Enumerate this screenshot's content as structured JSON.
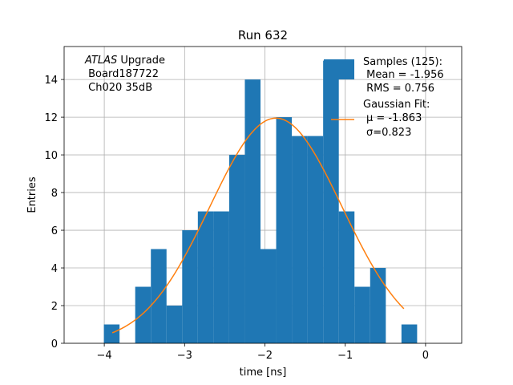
{
  "chart_data": {
    "type": "bar",
    "title": "Run 632",
    "xlabel": "time [ns]",
    "ylabel": "Entries",
    "xlim": [
      -4.5,
      0.45
    ],
    "ylim": [
      0,
      15.75
    ],
    "grid": true,
    "x_ticks": [
      -4,
      -3,
      -2,
      -1,
      0
    ],
    "x_tick_labels": [
      "−4",
      "−3",
      "−2",
      "−1",
      "0"
    ],
    "y_ticks": [
      0,
      2,
      4,
      6,
      8,
      10,
      12,
      14
    ],
    "y_tick_labels": [
      "0",
      "2",
      "4",
      "6",
      "8",
      "10",
      "12",
      "14"
    ],
    "bin_edges": [
      -4.2,
      -4.005,
      -3.81,
      -3.615,
      -3.42,
      -3.225,
      -3.03,
      -2.835,
      -2.64,
      -2.445,
      -2.25,
      -2.055,
      -1.86,
      -1.665,
      -1.47,
      -1.275,
      -1.08,
      -0.885,
      -0.69,
      -0.495,
      -0.3,
      -0.105,
      0.09
    ],
    "counts": [
      0,
      1,
      0,
      3,
      5,
      2,
      6,
      7,
      7,
      10,
      14,
      5,
      12,
      11,
      11,
      15,
      7,
      3,
      4,
      0,
      1,
      0
    ],
    "series": [
      {
        "name": "Samples (125):",
        "type": "histogram",
        "color": "#1f77b4",
        "stats": [
          " Mean = -1.956",
          " RMS = 0.756"
        ]
      },
      {
        "name": "Gaussian Fit:",
        "type": "line",
        "color": "#ff7f0e",
        "stats": [
          "μ = -1.863",
          "σ=0.823"
        ],
        "mu": -1.863,
        "sigma": 0.823,
        "amplitude": 11.95,
        "x_range": [
          -3.9,
          -0.27
        ]
      }
    ],
    "annotation": {
      "italic": "ATLAS",
      "rest": " Upgrade",
      "line2": " Board187722",
      "line3": " Ch020 35dB"
    }
  }
}
